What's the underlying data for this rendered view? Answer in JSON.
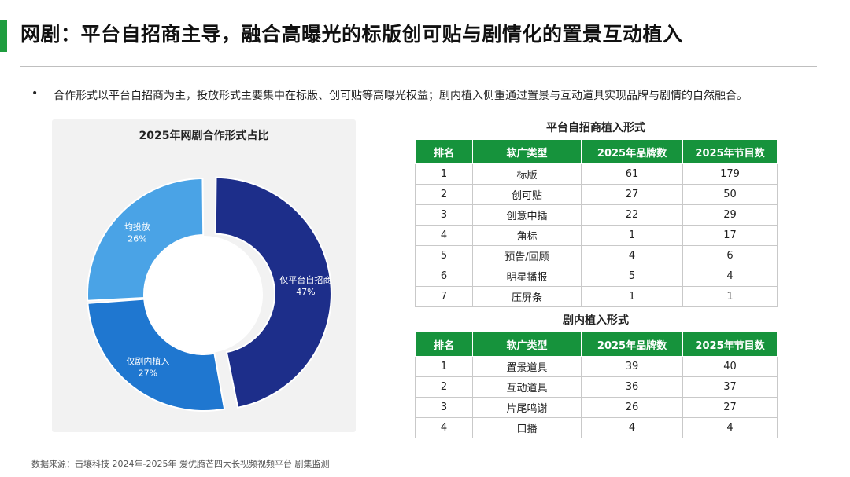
{
  "header": {
    "title": "网剧：平台自招商主导，融合高曝光的标版创可贴与剧情化的置景互动植入",
    "bullet_text": "合作形式以平台自招商为主，投放形式主要集中在标版、创可贴等高曝光权益；剧内植入侧重通过置景与互动道具实现品牌与剧情的自然融合。",
    "accent_color": "#1f9d3f"
  },
  "chart_data": {
    "type": "pie",
    "variant": "donut",
    "title": "2025年网剧合作形式占比",
    "slices": [
      {
        "label": "仅平台自招商",
        "value": 47,
        "value_label": "47%",
        "color": "#1d2e8a",
        "exploded": true
      },
      {
        "label": "仅剧内植入",
        "value": 27,
        "value_label": "27%",
        "color": "#1f77d0",
        "exploded": false
      },
      {
        "label": "均投放",
        "value": 26,
        "value_label": "26%",
        "color": "#4aa3e6",
        "exploded": false
      }
    ]
  },
  "table1": {
    "title": "平台自招商植入形式",
    "columns": [
      "排名",
      "软广类型",
      "2025年品牌数",
      "2025年节目数"
    ],
    "rows": [
      [
        "1",
        "标版",
        "61",
        "179"
      ],
      [
        "2",
        "创可贴",
        "27",
        "50"
      ],
      [
        "3",
        "创意中插",
        "22",
        "29"
      ],
      [
        "4",
        "角标",
        "1",
        "17"
      ],
      [
        "5",
        "预告/回顾",
        "4",
        "6"
      ],
      [
        "6",
        "明星播报",
        "5",
        "4"
      ],
      [
        "7",
        "压屏条",
        "1",
        "1"
      ]
    ]
  },
  "table2": {
    "title": "剧内植入形式",
    "columns": [
      "排名",
      "软广类型",
      "2025年品牌数",
      "2025年节目数"
    ],
    "rows": [
      [
        "1",
        "置景道具",
        "39",
        "40"
      ],
      [
        "2",
        "互动道具",
        "36",
        "37"
      ],
      [
        "3",
        "片尾鸣谢",
        "26",
        "27"
      ],
      [
        "4",
        "口播",
        "4",
        "4"
      ]
    ]
  },
  "table_header_color": "#16933c",
  "footnote": "数据来源：击壤科技 2024年-2025年 爱优腾芒四大长视频视频平台 剧集监测"
}
